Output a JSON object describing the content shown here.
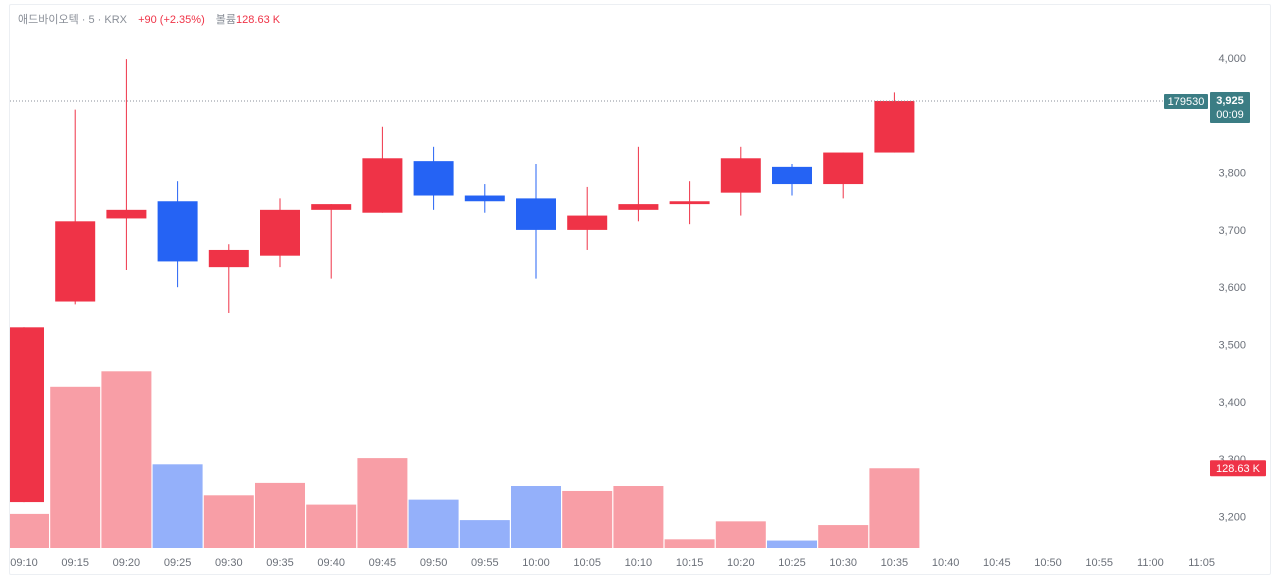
{
  "legend": {
    "symbol": "애드바이오텍 · 5 · KRX",
    "change": "+90 (+2.35%)",
    "volume_label": "볼륨",
    "volume_value": "128.63 K"
  },
  "price_tag": {
    "id_label": "179530",
    "price": "3,925",
    "countdown": "00:09",
    "value": 3925
  },
  "volume_tag": {
    "label": "128.63 K"
  },
  "colors": {
    "up": "#ef3347",
    "down": "#2563f4",
    "up_volume": "#f89ea6",
    "down_volume": "#94b0fa",
    "tag_bg": "#3b7d84"
  },
  "chart_data": {
    "type": "candlestick",
    "x_ticks": [
      "09:10",
      "09:15",
      "09:20",
      "09:25",
      "09:30",
      "09:35",
      "09:40",
      "09:45",
      "09:50",
      "09:55",
      "10:00",
      "10:05",
      "10:10",
      "10:15",
      "10:20",
      "10:25",
      "10:30",
      "10:35",
      "10:40",
      "10:45",
      "10:50",
      "10:55",
      "11:00",
      "11:05"
    ],
    "y_ticks": [
      "4,000",
      "3,900",
      "3,800",
      "3,700",
      "3,600",
      "3,500",
      "3,400",
      "3,300",
      "3,200"
    ],
    "y_tick_values": [
      4000,
      3900,
      3800,
      3700,
      3600,
      3500,
      3400,
      3300,
      3200
    ],
    "ylim": [
      3150,
      4030
    ],
    "candles": [
      {
        "time": "09:10",
        "open": 3225,
        "high": 3530,
        "low": 3225,
        "close": 3530
      },
      {
        "time": "09:15",
        "open": 3575,
        "high": 3910,
        "low": 3570,
        "close": 3715
      },
      {
        "time": "09:20",
        "open": 3720,
        "high": 3998,
        "low": 3630,
        "close": 3735
      },
      {
        "time": "09:25",
        "open": 3750,
        "high": 3785,
        "low": 3600,
        "close": 3645
      },
      {
        "time": "09:30",
        "open": 3635,
        "high": 3675,
        "low": 3555,
        "close": 3665
      },
      {
        "time": "09:35",
        "open": 3655,
        "high": 3755,
        "low": 3635,
        "close": 3735
      },
      {
        "time": "09:40",
        "open": 3735,
        "high": 3745,
        "low": 3615,
        "close": 3745
      },
      {
        "time": "09:45",
        "open": 3730,
        "high": 3880,
        "low": 3730,
        "close": 3825
      },
      {
        "time": "09:50",
        "open": 3820,
        "high": 3845,
        "low": 3735,
        "close": 3760
      },
      {
        "time": "09:55",
        "open": 3760,
        "high": 3780,
        "low": 3730,
        "close": 3750
      },
      {
        "time": "10:00",
        "open": 3755,
        "high": 3815,
        "low": 3615,
        "close": 3700
      },
      {
        "time": "10:05",
        "open": 3700,
        "high": 3775,
        "low": 3665,
        "close": 3725
      },
      {
        "time": "10:10",
        "open": 3735,
        "high": 3845,
        "low": 3715,
        "close": 3745
      },
      {
        "time": "10:15",
        "open": 3745,
        "high": 3785,
        "low": 3710,
        "close": 3750
      },
      {
        "time": "10:20",
        "open": 3765,
        "high": 3845,
        "low": 3725,
        "close": 3825
      },
      {
        "time": "10:25",
        "open": 3810,
        "high": 3815,
        "low": 3760,
        "close": 3780
      },
      {
        "time": "10:30",
        "open": 3780,
        "high": 3835,
        "low": 3755,
        "close": 3835
      },
      {
        "time": "10:35",
        "open": 3835,
        "high": 3940,
        "low": 3835,
        "close": 3925
      }
    ],
    "volume": [
      {
        "time": "09:10",
        "value": 55,
        "up": true
      },
      {
        "time": "09:15",
        "value": 260,
        "up": true
      },
      {
        "time": "09:20",
        "value": 285,
        "up": true
      },
      {
        "time": "09:25",
        "value": 135,
        "up": false
      },
      {
        "time": "09:30",
        "value": 85,
        "up": true
      },
      {
        "time": "09:35",
        "value": 105,
        "up": true
      },
      {
        "time": "09:40",
        "value": 70,
        "up": true
      },
      {
        "time": "09:45",
        "value": 145,
        "up": true
      },
      {
        "time": "09:50",
        "value": 78,
        "up": false
      },
      {
        "time": "09:55",
        "value": 45,
        "up": false
      },
      {
        "time": "10:00",
        "value": 100,
        "up": false
      },
      {
        "time": "10:05",
        "value": 92,
        "up": true
      },
      {
        "time": "10:10",
        "value": 100,
        "up": true
      },
      {
        "time": "10:15",
        "value": 14,
        "up": true
      },
      {
        "time": "10:20",
        "value": 43,
        "up": true
      },
      {
        "time": "10:25",
        "value": 12,
        "up": false
      },
      {
        "time": "10:30",
        "value": 37,
        "up": true
      },
      {
        "time": "10:35",
        "value": 128.63,
        "up": true
      }
    ],
    "volume_max": 400
  }
}
